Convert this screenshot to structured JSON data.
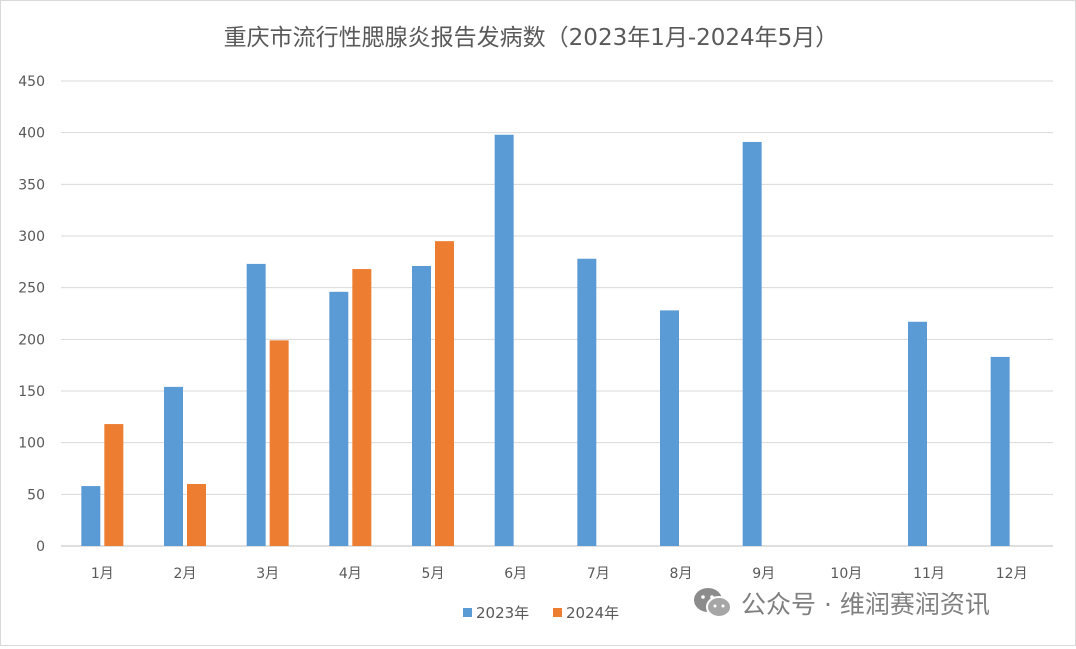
{
  "chart_data": {
    "type": "bar",
    "title": "重庆市流行性腮腺炎报告发病数（2023年1月-2024年5月）",
    "xlabel": "",
    "ylabel": "",
    "categories": [
      "1月",
      "2月",
      "3月",
      "4月",
      "5月",
      "6月",
      "7月",
      "8月",
      "9月",
      "10月",
      "11月",
      "12月"
    ],
    "series": [
      {
        "name": "2023年",
        "color": "#5b9bd5",
        "values": [
          58,
          154,
          273,
          246,
          271,
          398,
          278,
          228,
          391,
          null,
          217,
          183
        ]
      },
      {
        "name": "2024年",
        "color": "#ed7d31",
        "values": [
          118,
          60,
          199,
          268,
          295,
          null,
          null,
          null,
          null,
          null,
          null,
          null
        ]
      }
    ],
    "ylim": [
      0,
      450
    ],
    "yticks": [
      0,
      50,
      100,
      150,
      200,
      250,
      300,
      350,
      400,
      450
    ],
    "grid": true,
    "legend_position": "bottom"
  },
  "watermark": {
    "icon": "wechat-icon",
    "text": "公众号 · 维润赛润资讯"
  }
}
